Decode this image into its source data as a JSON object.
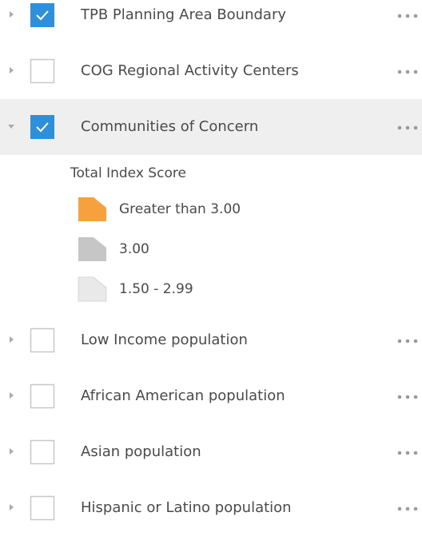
{
  "layers": [
    {
      "name": "TPB Planning Area Boundary",
      "checked": true,
      "expanded": false
    },
    {
      "name": "COG Regional Activity Centers",
      "checked": false,
      "expanded": false
    },
    {
      "name": "Communities of Concern",
      "checked": true,
      "expanded": true,
      "legend": {
        "title": "Total Index Score",
        "items": [
          {
            "label": "Greater than 3.00",
            "color": "#f7a13e"
          },
          {
            "label": "3.00",
            "color": "#c6c6c6"
          },
          {
            "label": "1.50 - 2.99",
            "color": "#e9e9e9"
          }
        ]
      }
    },
    {
      "name": "Low Income population",
      "checked": false,
      "expanded": false
    },
    {
      "name": "African American population",
      "checked": false,
      "expanded": false
    },
    {
      "name": "Asian population",
      "checked": false,
      "expanded": false
    },
    {
      "name": "Hispanic or Latino population",
      "checked": false,
      "expanded": false
    }
  ]
}
